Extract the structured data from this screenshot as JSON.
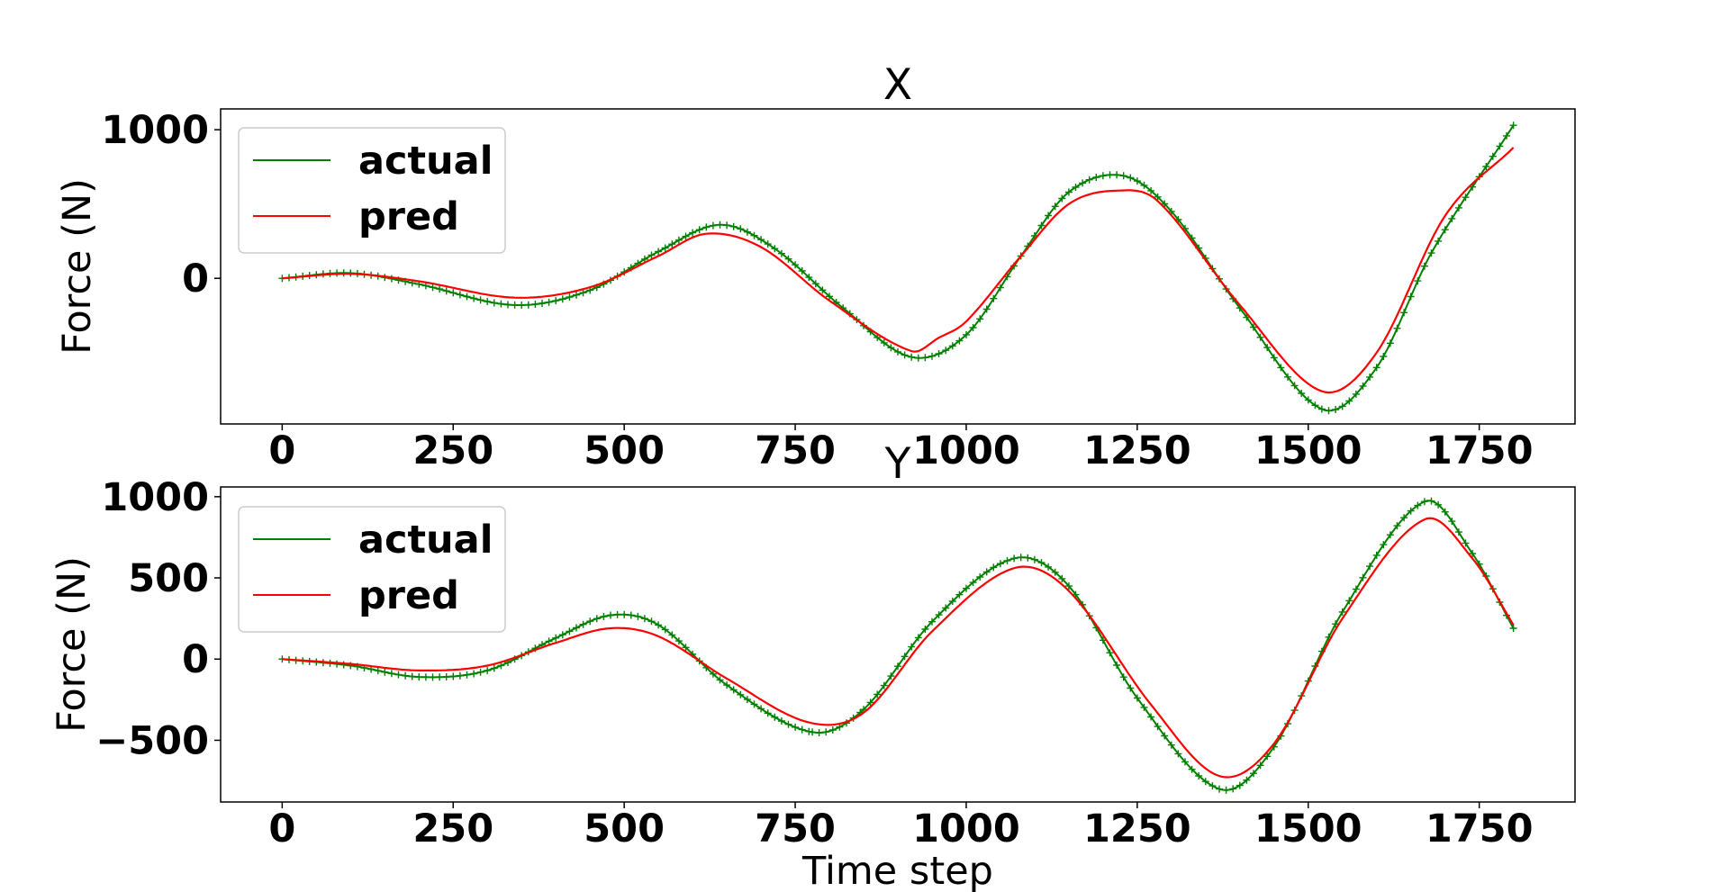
{
  "chart_data": [
    {
      "type": "line",
      "title": "X",
      "xlabel": "",
      "ylabel": "Force (N)",
      "xlim": [
        -90,
        1890
      ],
      "ylim": [
        -980,
        1140
      ],
      "xticks": [
        0,
        250,
        500,
        750,
        1000,
        1250,
        1500,
        1750
      ],
      "xtick_labels": [
        "0",
        "250",
        "500",
        "750",
        "1000",
        "1250",
        "1500",
        "1750"
      ],
      "yticks": [
        0,
        1000
      ],
      "ytick_labels": [
        "0",
        "1000"
      ],
      "legend": "upper-left",
      "grid": false,
      "series": [
        {
          "name": "actual",
          "color": "#008000",
          "marker": "+",
          "x": [
            0,
            100,
            200,
            340,
            450,
            550,
            640,
            720,
            820,
            920,
            1000,
            1080,
            1150,
            1230,
            1300,
            1400,
            1520,
            1600,
            1680,
            1800
          ],
          "y": [
            0,
            35,
            -40,
            -180,
            -80,
            180,
            360,
            200,
            -200,
            -530,
            -380,
            150,
            580,
            690,
            450,
            -200,
            -880,
            -600,
            170,
            1030
          ]
        },
        {
          "name": "pred",
          "color": "#ff0000",
          "marker": "",
          "x": [
            0,
            100,
            200,
            340,
            450,
            550,
            620,
            700,
            800,
            920,
            960,
            1000,
            1080,
            1150,
            1220,
            1280,
            1400,
            1520,
            1600,
            1700,
            1800
          ],
          "y": [
            0,
            30,
            -20,
            -130,
            -60,
            150,
            300,
            210,
            -150,
            -490,
            -400,
            -290,
            150,
            500,
            590,
            520,
            -180,
            -760,
            -500,
            420,
            880
          ]
        }
      ]
    },
    {
      "type": "line",
      "title": "Y",
      "xlabel": "Time step",
      "ylabel": "Force (N)",
      "xlim": [
        -90,
        1890
      ],
      "ylim": [
        -880,
        1060
      ],
      "xticks": [
        0,
        250,
        500,
        750,
        1000,
        1250,
        1500,
        1750
      ],
      "xtick_labels": [
        "0",
        "250",
        "500",
        "750",
        "1000",
        "1250",
        "1500",
        "1750"
      ],
      "yticks": [
        -500,
        0,
        500,
        1000
      ],
      "ytick_labels": [
        "−500",
        "0",
        "500",
        "1000"
      ],
      "legend": "upper-left",
      "grid": false,
      "series": [
        {
          "name": "actual",
          "color": "#008000",
          "marker": "+",
          "x": [
            0,
            100,
            200,
            300,
            400,
            480,
            550,
            650,
            775,
            850,
            950,
            1070,
            1150,
            1250,
            1370,
            1450,
            1550,
            1670,
            1740,
            1800
          ],
          "y": [
            0,
            -40,
            -110,
            -70,
            130,
            270,
            210,
            -160,
            -450,
            -310,
            230,
            620,
            450,
            -240,
            -800,
            -540,
            290,
            970,
            650,
            190
          ]
        },
        {
          "name": "pred",
          "color": "#ff0000",
          "marker": "",
          "x": [
            0,
            100,
            200,
            300,
            400,
            480,
            550,
            650,
            770,
            850,
            950,
            1070,
            1150,
            1270,
            1370,
            1450,
            1550,
            1670,
            1740,
            1800
          ],
          "y": [
            0,
            -30,
            -70,
            -40,
            100,
            190,
            140,
            -120,
            -390,
            -330,
            170,
            560,
            420,
            -280,
            -720,
            -520,
            250,
            860,
            620,
            210
          ]
        }
      ]
    }
  ]
}
